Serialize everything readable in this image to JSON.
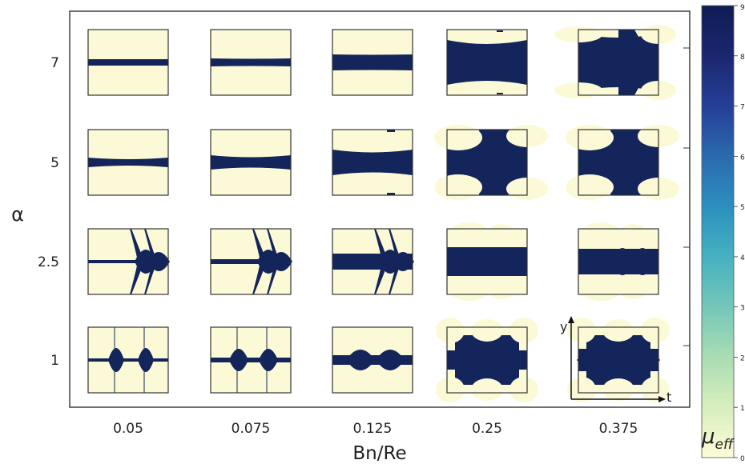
{
  "chart_data": {
    "type": "heatmap",
    "xlabel": "Bn/Re",
    "ylabel": "α",
    "x_ticks": [
      "0.05",
      "0.075",
      "0.125",
      "0.25",
      "0.375"
    ],
    "y_ticks": [
      "7",
      "5",
      "2.5",
      "1"
    ],
    "inset_axes": {
      "xlabel": "t",
      "ylabel": "y"
    },
    "colorbar": {
      "label_main": "μ",
      "label_sub": "eff",
      "min": 0,
      "max": 9,
      "ticks": [
        "0",
        "1",
        "2",
        "3",
        "4",
        "5",
        "6",
        "7",
        "8",
        "9"
      ],
      "colors": [
        "#fcfcd8",
        "#d8eebc",
        "#a9dcb3",
        "#73c7b9",
        "#46b1c2",
        "#2c8fbe",
        "#2a6aad",
        "#253f96",
        "#1a2770",
        "#0f1c54"
      ]
    },
    "colors": {
      "yielded": "#fcfad6",
      "unyielded": "#13255a"
    },
    "panels": [
      {
        "alpha": "7",
        "bn_re": "0.05",
        "unyielded_fraction": 0.08
      },
      {
        "alpha": "7",
        "bn_re": "0.075",
        "unyielded_fraction": 0.12
      },
      {
        "alpha": "7",
        "bn_re": "0.125",
        "unyielded_fraction": 0.25
      },
      {
        "alpha": "7",
        "bn_re": "0.25",
        "unyielded_fraction": 0.55
      },
      {
        "alpha": "7",
        "bn_re": "0.375",
        "unyielded_fraction": 0.65
      },
      {
        "alpha": "5",
        "bn_re": "0.05",
        "unyielded_fraction": 0.1
      },
      {
        "alpha": "5",
        "bn_re": "0.075",
        "unyielded_fraction": 0.18
      },
      {
        "alpha": "5",
        "bn_re": "0.125",
        "unyielded_fraction": 0.35
      },
      {
        "alpha": "5",
        "bn_re": "0.25",
        "unyielded_fraction": 0.55
      },
      {
        "alpha": "5",
        "bn_re": "0.375",
        "unyielded_fraction": 0.6
      },
      {
        "alpha": "2.5",
        "bn_re": "0.05",
        "unyielded_fraction": 0.15
      },
      {
        "alpha": "2.5",
        "bn_re": "0.075",
        "unyielded_fraction": 0.2
      },
      {
        "alpha": "2.5",
        "bn_re": "0.125",
        "unyielded_fraction": 0.3
      },
      {
        "alpha": "2.5",
        "bn_re": "0.25",
        "unyielded_fraction": 0.45
      },
      {
        "alpha": "2.5",
        "bn_re": "0.375",
        "unyielded_fraction": 0.45
      },
      {
        "alpha": "1",
        "bn_re": "0.05",
        "unyielded_fraction": 0.1
      },
      {
        "alpha": "1",
        "bn_re": "0.075",
        "unyielded_fraction": 0.15
      },
      {
        "alpha": "1",
        "bn_re": "0.125",
        "unyielded_fraction": 0.25
      },
      {
        "alpha": "1",
        "bn_re": "0.25",
        "unyielded_fraction": 0.4
      },
      {
        "alpha": "1",
        "bn_re": "0.375",
        "unyielded_fraction": 0.45
      }
    ]
  }
}
